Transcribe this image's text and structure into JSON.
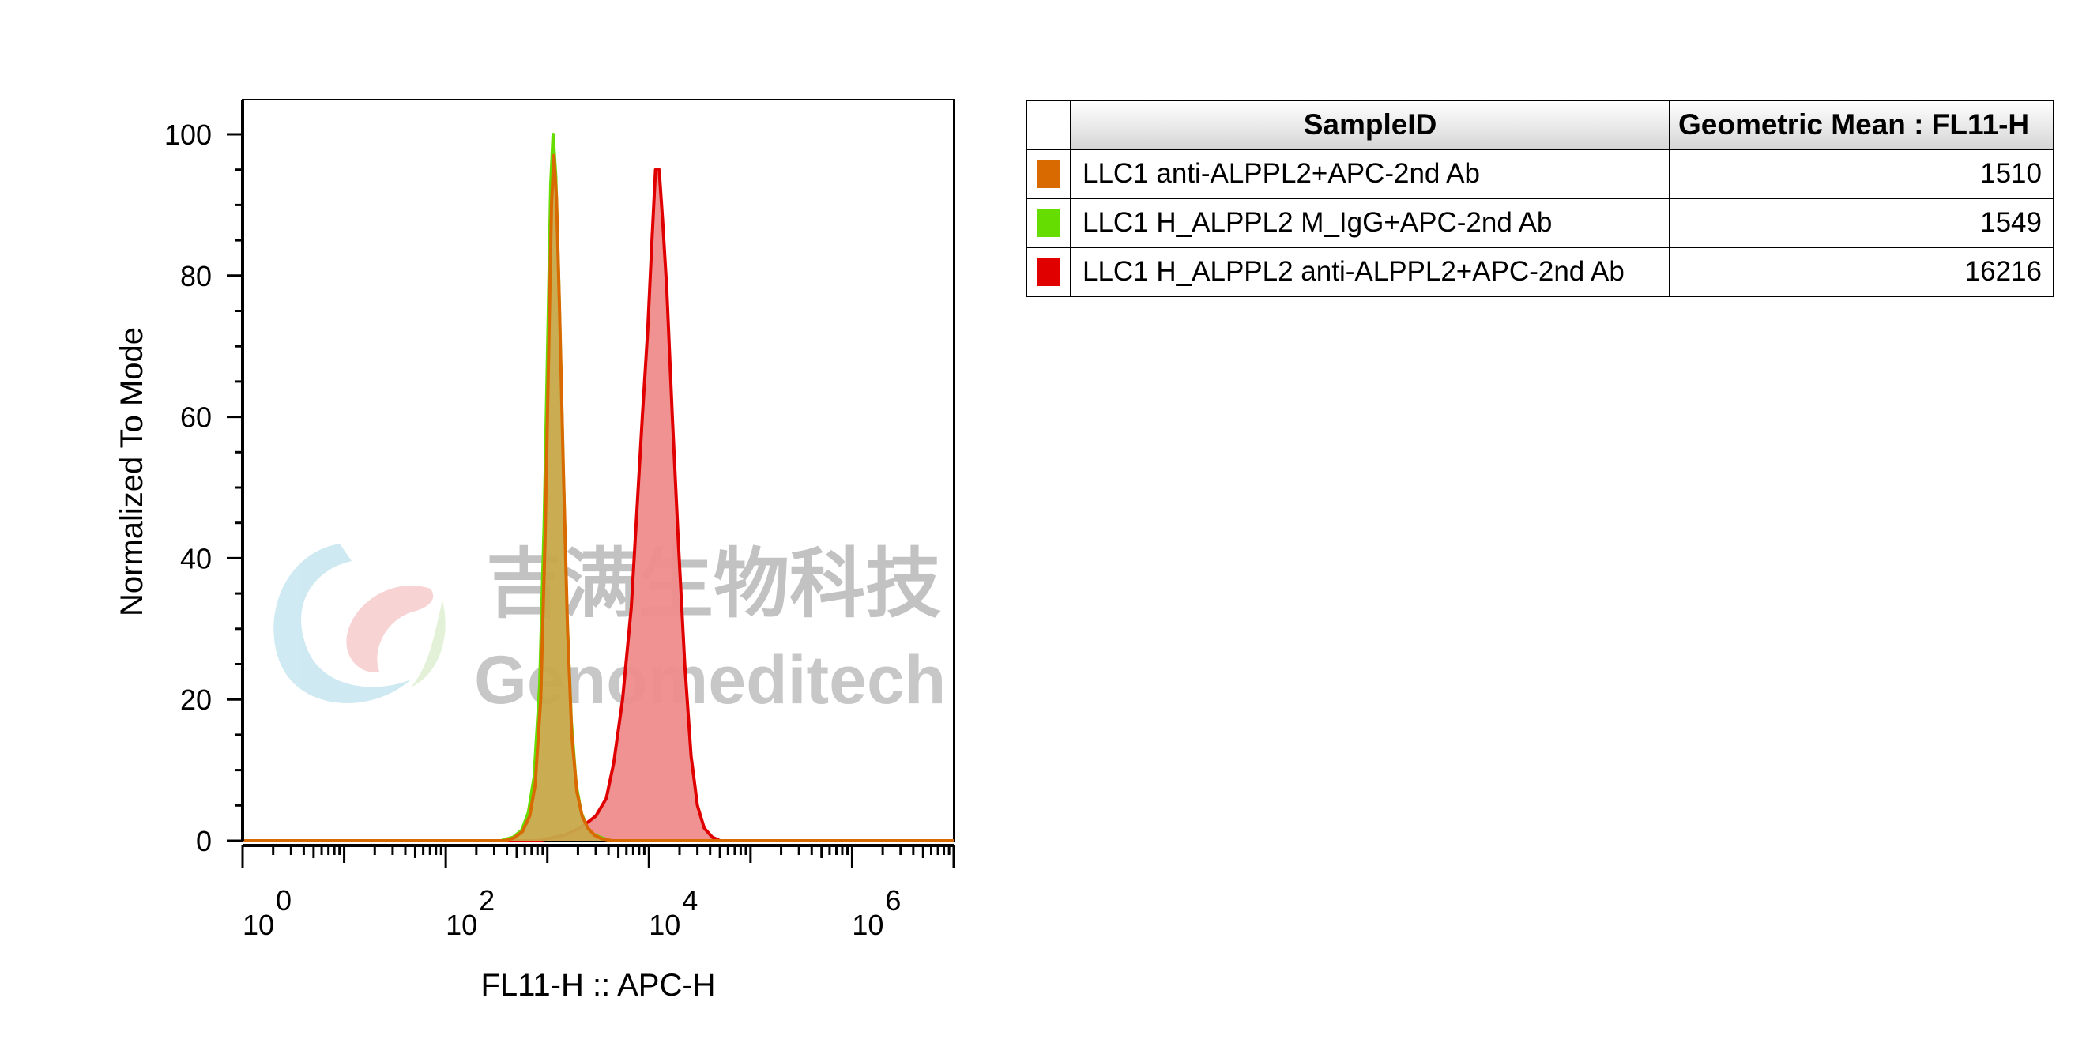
{
  "chart_data": {
    "type": "area",
    "xlabel": "FL11-H :: APC-H",
    "ylabel": "Normalized To Mode",
    "x_scale": "log",
    "xlim": [
      1,
      10000000
    ],
    "ylim": [
      0,
      100
    ],
    "y_ticks": [
      "0",
      "20",
      "40",
      "60",
      "80",
      "100"
    ],
    "x_ticks": [
      {
        "value": 1,
        "base": "10",
        "exp": "0"
      },
      {
        "value": 100,
        "base": "10",
        "exp": "2"
      },
      {
        "value": 10000,
        "base": "10",
        "exp": "4"
      },
      {
        "value": 1000000,
        "base": "10",
        "exp": "6"
      }
    ],
    "grid": false,
    "series": [
      {
        "name": "LLC1 H_ALPPL2 anti-ALPPL2+APC-2nd Ab",
        "color": "#e00000",
        "fill": "#ef8c8c",
        "points": [
          [
            1,
            0
          ],
          [
            800,
            0
          ],
          [
            1500,
            0.8
          ],
          [
            2200,
            2
          ],
          [
            3000,
            3.5
          ],
          [
            3800,
            6
          ],
          [
            4500,
            11
          ],
          [
            5500,
            20
          ],
          [
            6700,
            33
          ],
          [
            7700,
            48
          ],
          [
            8600,
            60
          ],
          [
            9700,
            72
          ],
          [
            10700,
            85
          ],
          [
            11600,
            95
          ],
          [
            12600,
            95
          ],
          [
            13600,
            88
          ],
          [
            15000,
            78
          ],
          [
            17000,
            60
          ],
          [
            19500,
            42
          ],
          [
            22500,
            25
          ],
          [
            26000,
            12
          ],
          [
            30000,
            5
          ],
          [
            35000,
            1.8
          ],
          [
            42000,
            0.5
          ],
          [
            50000,
            0
          ],
          [
            10000000,
            0
          ]
        ]
      },
      {
        "name": "LLC1 H_ALPPL2 M_IgG+APC-2nd Ab",
        "color": "#66dd00",
        "fill": "none",
        "points": [
          [
            1,
            0
          ],
          [
            350,
            0
          ],
          [
            460,
            0.5
          ],
          [
            560,
            1.5
          ],
          [
            650,
            4
          ],
          [
            740,
            9
          ],
          [
            840,
            22
          ],
          [
            930,
            45
          ],
          [
            1020,
            74
          ],
          [
            1080,
            93
          ],
          [
            1140,
            100
          ],
          [
            1210,
            94
          ],
          [
            1300,
            78
          ],
          [
            1420,
            55
          ],
          [
            1560,
            32
          ],
          [
            1720,
            17
          ],
          [
            1920,
            8
          ],
          [
            2150,
            4
          ],
          [
            2450,
            2
          ],
          [
            2800,
            1
          ],
          [
            3300,
            0.5
          ],
          [
            4200,
            0
          ],
          [
            10000000,
            0
          ]
        ]
      },
      {
        "name": "LLC1 anti-ALPPL2+APC-2nd Ab",
        "color": "#d96a00",
        "fill": "#c7a84a",
        "points": [
          [
            1,
            0
          ],
          [
            380,
            0
          ],
          [
            470,
            0.4
          ],
          [
            570,
            1.3
          ],
          [
            670,
            3.5
          ],
          [
            760,
            8
          ],
          [
            860,
            20
          ],
          [
            950,
            43
          ],
          [
            1040,
            72
          ],
          [
            1100,
            90
          ],
          [
            1160,
            97
          ],
          [
            1230,
            91
          ],
          [
            1320,
            75
          ],
          [
            1440,
            52
          ],
          [
            1580,
            30
          ],
          [
            1740,
            15
          ],
          [
            1950,
            7
          ],
          [
            2200,
            3.5
          ],
          [
            2500,
            1.8
          ],
          [
            2900,
            0.8
          ],
          [
            3400,
            0.3
          ],
          [
            4300,
            0
          ],
          [
            10000000,
            0
          ]
        ]
      }
    ]
  },
  "legend": {
    "headers": {
      "swatch": "",
      "sample": "SampleID",
      "gmean": "Geometric Mean : FL11-H"
    },
    "rows": [
      {
        "color": "#d96a00",
        "sample": "LLC1 anti-ALPPL2+APC-2nd Ab",
        "value": "1510"
      },
      {
        "color": "#66dd00",
        "sample": "LLC1 H_ALPPL2 M_IgG+APC-2nd Ab",
        "value": "1549"
      },
      {
        "color": "#e00000",
        "sample": "LLC1 H_ALPPL2 anti-ALPPL2+APC-2nd Ab",
        "value": "16216"
      }
    ]
  },
  "watermark": {
    "text_cn": "吉满生物科技",
    "text_en": "Genomeditech",
    "colors": {
      "blue": "#a8d8e8",
      "pink": "#f2b0b0",
      "green": "#cce6b8",
      "text": "#9a9a9a"
    }
  }
}
